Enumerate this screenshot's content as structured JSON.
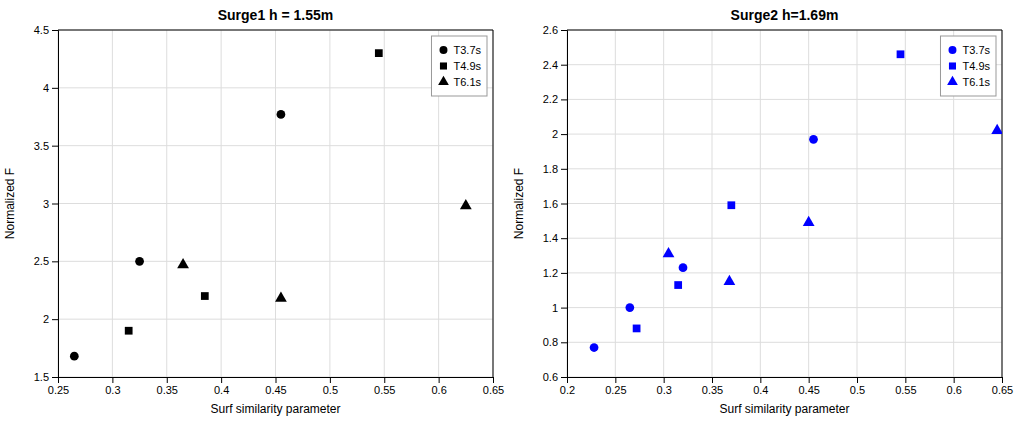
{
  "chart_data": [
    {
      "type": "scatter",
      "title": "Surge1 h = 1.55m",
      "xlabel": "Surf similarity parameter",
      "ylabel": "Normalized F",
      "xlim": [
        0.25,
        0.65
      ],
      "ylim": [
        1.5,
        4.5
      ],
      "xticks": [
        0.25,
        0.3,
        0.35,
        0.4,
        0.45,
        0.5,
        0.55,
        0.6,
        0.65
      ],
      "yticks": [
        1.5,
        2.0,
        2.5,
        3.0,
        3.5,
        4.0,
        4.5
      ],
      "color": "black",
      "grid": true,
      "legend": "upper right",
      "series": [
        {
          "name": "T3.7s",
          "marker": "circle",
          "x": [
            0.265,
            0.325,
            0.455
          ],
          "values": [
            1.68,
            2.5,
            3.77
          ]
        },
        {
          "name": "T4.9s",
          "marker": "square",
          "x": [
            0.315,
            0.385,
            0.545
          ],
          "values": [
            1.9,
            2.2,
            4.3
          ]
        },
        {
          "name": "T6.1s",
          "marker": "triangle",
          "x": [
            0.365,
            0.455,
            0.625
          ],
          "values": [
            2.47,
            2.18,
            2.98
          ]
        }
      ]
    },
    {
      "type": "scatter",
      "title": "Surge2 h=1.69m",
      "xlabel": "Surf similarity parameter",
      "ylabel": "Normalized F",
      "xlim": [
        0.2,
        0.65
      ],
      "ylim": [
        0.6,
        2.6
      ],
      "xticks": [
        0.2,
        0.25,
        0.3,
        0.35,
        0.4,
        0.45,
        0.5,
        0.55,
        0.6,
        0.65
      ],
      "yticks": [
        0.6,
        0.8,
        1.0,
        1.2,
        1.4,
        1.6,
        1.8,
        2.0,
        2.2,
        2.4,
        2.6
      ],
      "color": "#0000ff",
      "grid": true,
      "legend": "upper right",
      "series": [
        {
          "name": "T3.7s",
          "marker": "circle",
          "x": [
            0.228,
            0.265,
            0.32,
            0.455
          ],
          "values": [
            0.77,
            1.0,
            1.23,
            1.97
          ]
        },
        {
          "name": "T4.9s",
          "marker": "square",
          "x": [
            0.272,
            0.315,
            0.37,
            0.545
          ],
          "values": [
            0.88,
            1.13,
            1.59,
            2.46
          ]
        },
        {
          "name": "T6.1s",
          "marker": "triangle",
          "x": [
            0.305,
            0.368,
            0.45,
            0.645
          ],
          "values": [
            1.31,
            1.15,
            1.49,
            2.02
          ]
        }
      ]
    }
  ]
}
